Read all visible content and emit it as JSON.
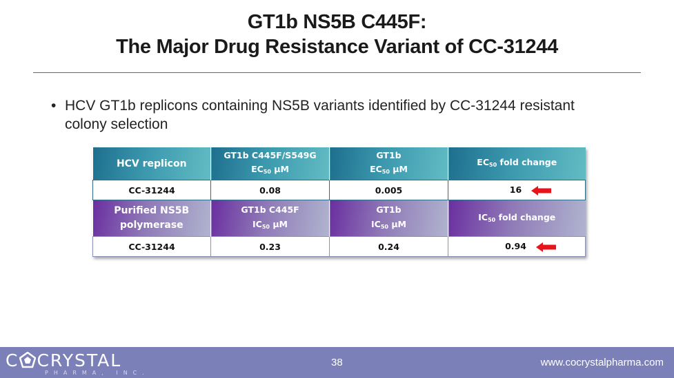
{
  "slide": {
    "title_line1": "GT1b NS5B C445F:",
    "title_line2": "The Major Drug Resistance Variant of CC-31244",
    "bullet_symbol": "•",
    "bullet_text": "HCV GT1b replicons containing NS5B variants identified by CC-31244 resistant colony selection"
  },
  "table": {
    "replicon_header": {
      "col1": "HCV replicon",
      "col2_line1": "GT1b C445F/S549G",
      "col2_line2_pre": "EC",
      "col2_line2_sub": "50",
      "col2_line2_post": " µM",
      "col3_line1": "GT1b",
      "col3_line2_pre": "EC",
      "col3_line2_sub": "50",
      "col3_line2_post": " µM",
      "col4_pre": "EC",
      "col4_sub": "50",
      "col4_post": " fold change"
    },
    "replicon_row": {
      "compound": "CC-31244",
      "mutant": "0.08",
      "wildtype": "0.005",
      "fold_change": "16"
    },
    "polymerase_header": {
      "col1_line1": "Purified NS5B",
      "col1_line2": "polymerase",
      "col2_line1": "GT1b C445F",
      "col2_line2_pre": "IC",
      "col2_line2_sub": "50",
      "col2_line2_post": " µM",
      "col3_line1": "GT1b",
      "col3_line2_pre": "IC",
      "col3_line2_sub": "50",
      "col3_line2_post": " µM",
      "col4_pre": "IC",
      "col4_sub": "50",
      "col4_post": " fold change"
    },
    "polymerase_row": {
      "compound": "CC-31244",
      "mutant": "0.23",
      "wildtype": "0.24",
      "fold_change": "0.94"
    },
    "arrow_icon": "left-arrow-icon",
    "arrow_color": "#e8141c"
  },
  "footer": {
    "logo_pre": "C",
    "logo_post": "CRYSTAL",
    "logo_sub": "PHARMA, INC.",
    "page_number": "38",
    "url": "www.cocrystalpharma.com",
    "background_color": "#7b80b8"
  }
}
